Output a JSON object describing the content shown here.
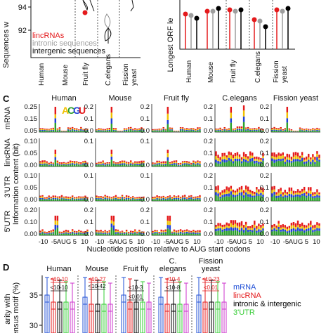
{
  "colors": {
    "mRNA": "#1f4fd6",
    "lincRNA": "#e41a1c",
    "intronic": "#9e9e9e",
    "intergenic": "#000000",
    "utr3": "#33cc33",
    "utr5": "#cc33cc",
    "logoA": "#2ca02c",
    "logoC": "#1f3fd6",
    "logoG": "#f0c000",
    "logoU": "#e41a1c"
  },
  "panel_top": {
    "left": {
      "ylabel": "Sequences w",
      "yticks": [
        "94",
        "92"
      ],
      "legend": [
        "lincRNAs",
        "intronic sequences",
        "intergenic sequences"
      ],
      "xticks": [
        "Human",
        "Mouse",
        "Fruit fly",
        "C.elegans",
        "Fission yeast"
      ]
    },
    "right": {
      "ylabel": "Longest ORF le",
      "xticks": [
        "Human",
        "Mouse",
        "Fruit fly",
        "C.elegans",
        "Fission yeast"
      ]
    }
  },
  "panel_c": {
    "letter": "C",
    "species": [
      "Human",
      "Mouse",
      "Fruit fly",
      "C.elegans",
      "Fission yeast"
    ],
    "rows": [
      "mRNA",
      "lincRNA",
      "3'UTR",
      "5'UTR"
    ],
    "ylabel": "Information content (bit)",
    "logo_letters": [
      "A",
      "C",
      "G",
      "U"
    ],
    "yticks": {
      "mRNA": [
        [
          "0.25",
          "0.15",
          "0.05"
        ],
        [
          "0.2",
          "0.1",
          "0.0"
        ],
        [
          "0.2",
          "0.1",
          "0.0"
        ],
        [
          "0.2",
          "0.1",
          "0.0"
        ],
        [
          "0.2",
          "0.1",
          "0.0"
        ]
      ],
      "lincRNA": [
        [
          "0.10",
          "0.05",
          "0.00"
        ],
        [
          "0.1",
          "0.0"
        ],
        [
          "0.1",
          "0.0"
        ],
        [
          "0.2",
          "0.1",
          "0.0"
        ],
        [
          "0.2",
          "0.1",
          "0.0"
        ]
      ],
      "3'UTR": [
        [
          "0.10",
          "0.05",
          "0.00"
        ],
        [
          "0.1",
          "0.0"
        ],
        [
          "0.1",
          "0.0"
        ],
        [
          "0.2",
          "0.1",
          "0.0"
        ],
        [
          "0.2",
          "0.1",
          "0.0"
        ]
      ],
      "5'UTR": [
        [
          "0.20",
          "0.10",
          "0.00"
        ],
        [
          "0.2",
          "0.1",
          "0.0"
        ],
        [
          "0.2",
          "0.1",
          "0.0"
        ],
        [
          "0.2",
          "0.1",
          "0.0"
        ],
        [
          "0.2",
          "0.1",
          "0.0"
        ]
      ]
    },
    "xticklabels": [
      "-10",
      "-5",
      "AUG",
      "5",
      "10"
    ],
    "xlabel": "Nucleotide position relative to AUG start codons"
  },
  "panel_d": {
    "letter": "D",
    "species": [
      "Human",
      "Mouse",
      "Fruit fly",
      "C.\nelegans",
      "Fission\nyeast"
    ],
    "ylabel": "arity with\nensus motif (%)",
    "yticks": [
      "35",
      "30"
    ],
    "pvalues": [
      {
        "text": "<10-10",
        "color": "black"
      },
      {
        "text": "<10-10",
        "color": "red"
      },
      {
        "text": "<10-42",
        "color": "black"
      },
      {
        "text": "<10-27",
        "color": "red"
      },
      {
        "text": "<10-3",
        "color": "black"
      },
      {
        "text": "<0.01",
        "color": "black"
      },
      {
        "text": "<10-8",
        "color": "black"
      },
      {
        "text": "<10-4",
        "color": "red"
      },
      {
        "text": "<10-23",
        "color": "red"
      },
      {
        "text": "<0.01",
        "color": "red"
      }
    ],
    "legend": [
      "mRNA",
      "lincRNA",
      "intronic & intergenic",
      "3'UTR"
    ]
  },
  "chart_data": [
    {
      "type": "scatter",
      "title": "",
      "ylabel": "Sequences w...",
      "categories": [
        "Human",
        "Mouse",
        "Fruit fly",
        "C.elegans",
        "Fission yeast"
      ],
      "series": [
        {
          "name": "lincRNAs",
          "values": [
            null,
            null,
            93.6,
            null,
            null
          ]
        }
      ]
    },
    {
      "type": "scatter",
      "title": "",
      "ylabel": "Longest ORF le...",
      "categories": [
        "Human",
        "Mouse",
        "Fruit fly",
        "C.elegans",
        "Fission yeast"
      ],
      "series": [
        {
          "name": "lincRNAs",
          "values": [
            null,
            null,
            null,
            null,
            null
          ]
        }
      ]
    },
    {
      "type": "bar",
      "title": "",
      "xlabel": "Nucleotide position relative to AUG start codons",
      "ylabel": "Information content (bit)",
      "categories": [
        "-10",
        "-5",
        "AUG",
        "5",
        "10"
      ],
      "series": []
    },
    {
      "type": "bar",
      "title": "",
      "ylabel": "Similarity with consensus motif (%)",
      "categories": [
        "Human",
        "Mouse",
        "Fruit fly",
        "C. elegans",
        "Fission yeast"
      ],
      "series": [
        {
          "name": "mRNA",
          "values": [
            32.5,
            32.0,
            30.5,
            31.5,
            31.0
          ]
        },
        {
          "name": "lincRNA",
          "values": [
            30.0,
            30.2,
            29.8,
            30.5,
            30.0
          ]
        },
        {
          "name": "intronic & intergenic",
          "values": [
            30.5,
            30.3,
            30.0,
            30.2,
            30.4
          ]
        },
        {
          "name": "3'UTR",
          "values": [
            30.2,
            30.0,
            30.2,
            30.4,
            30.1
          ]
        }
      ]
    }
  ]
}
